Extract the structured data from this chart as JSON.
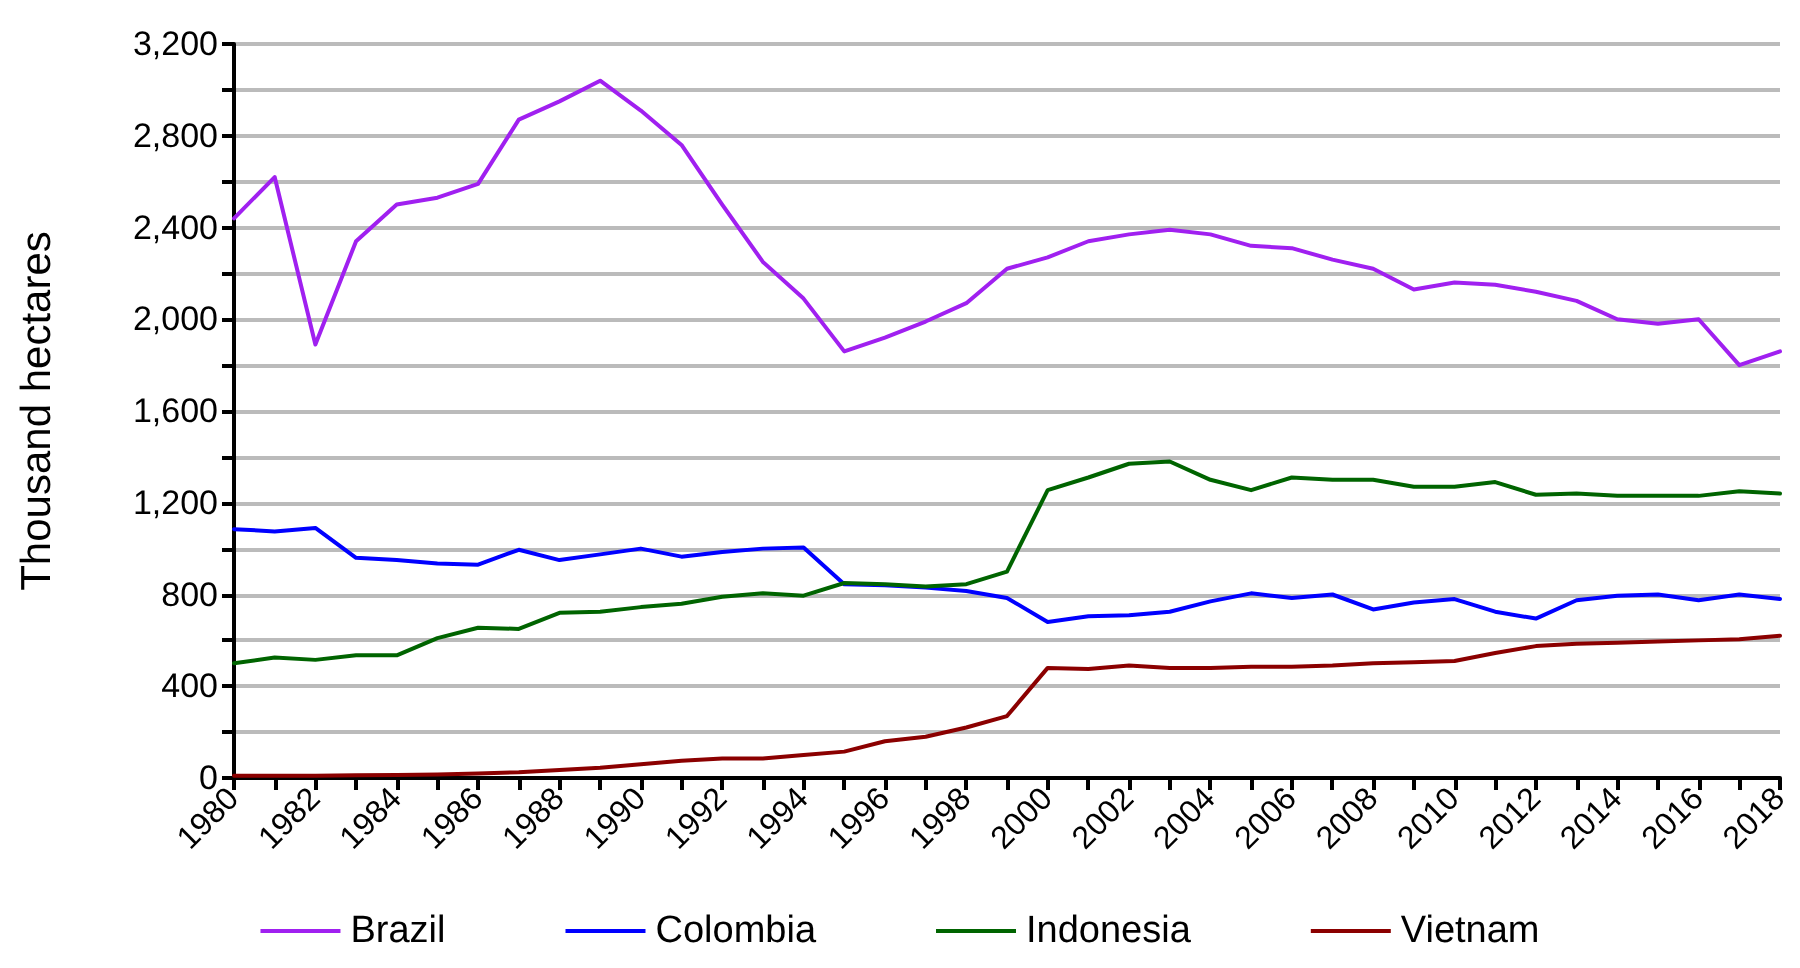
{
  "chart_data": {
    "type": "line",
    "ylabel": "Thousand hectares",
    "x": [
      1980,
      1981,
      1982,
      1983,
      1984,
      1985,
      1986,
      1987,
      1988,
      1989,
      1990,
      1991,
      1992,
      1993,
      1994,
      1995,
      1996,
      1997,
      1998,
      1999,
      2000,
      2001,
      2002,
      2003,
      2004,
      2005,
      2006,
      2007,
      2008,
      2009,
      2010,
      2011,
      2012,
      2013,
      2014,
      2015,
      2016,
      2017,
      2018
    ],
    "series": [
      {
        "name": "Brazil",
        "color": "#a020f0",
        "values": [
          2440,
          2620,
          1890,
          2340,
          2500,
          2530,
          2590,
          2870,
          2950,
          3040,
          2910,
          2760,
          2500,
          2250,
          2090,
          1860,
          1920,
          1990,
          2070,
          2220,
          2270,
          2340,
          2370,
          2390,
          2370,
          2320,
          2310,
          2260,
          2220,
          2130,
          2160,
          2150,
          2120,
          2080,
          2000,
          1980,
          2000,
          1800,
          1860
        ]
      },
      {
        "name": "Colombia",
        "color": "#0000ff",
        "values": [
          1085,
          1075,
          1090,
          960,
          950,
          935,
          930,
          995,
          950,
          975,
          1000,
          965,
          985,
          1000,
          1005,
          845,
          840,
          830,
          815,
          785,
          680,
          705,
          710,
          725,
          770,
          805,
          785,
          800,
          735,
          765,
          780,
          725,
          695,
          775,
          795,
          800,
          775,
          800,
          780
        ]
      },
      {
        "name": "Indonesia",
        "color": "#006400",
        "values": [
          500,
          525,
          515,
          535,
          535,
          610,
          655,
          650,
          720,
          725,
          745,
          760,
          790,
          805,
          795,
          850,
          845,
          835,
          845,
          900,
          1255,
          1310,
          1370,
          1380,
          1300,
          1255,
          1310,
          1300,
          1300,
          1270,
          1270,
          1290,
          1235,
          1240,
          1230,
          1230,
          1230,
          1250,
          1240
        ]
      },
      {
        "name": "Vietnam",
        "color": "#8b0000",
        "values": [
          10,
          10,
          10,
          12,
          13,
          15,
          20,
          25,
          35,
          45,
          60,
          75,
          85,
          85,
          100,
          115,
          160,
          180,
          220,
          270,
          480,
          475,
          490,
          480,
          480,
          485,
          485,
          490,
          500,
          505,
          510,
          545,
          575,
          585,
          590,
          595,
          600,
          605,
          620
        ]
      }
    ],
    "xlim": [
      1980,
      2018
    ],
    "xticks": [
      1980,
      {
        "value": 1981,
        "label": null
      },
      1982,
      {
        "value": 1983,
        "label": null
      },
      1984,
      {
        "value": 1985,
        "label": null
      },
      1986,
      {
        "value": 1987,
        "label": null
      },
      1988,
      {
        "value": 1989,
        "label": null
      },
      1990,
      {
        "value": 1991,
        "label": null
      },
      1992,
      {
        "value": 1993,
        "label": null
      },
      1994,
      {
        "value": 1995,
        "label": null
      },
      1996,
      {
        "value": 1997,
        "label": null
      },
      1998,
      {
        "value": 1999,
        "label": null
      },
      2000,
      {
        "value": 2001,
        "label": null
      },
      2002,
      {
        "value": 2003,
        "label": null
      },
      2004,
      {
        "value": 2005,
        "label": null
      },
      2006,
      {
        "value": 2007,
        "label": null
      },
      2008,
      {
        "value": 2009,
        "label": null
      },
      2010,
      {
        "value": 2011,
        "label": null
      },
      2012,
      {
        "value": 2013,
        "label": null
      },
      2014,
      {
        "value": 2015,
        "label": null
      },
      2016,
      {
        "value": 2017,
        "label": null
      },
      2018
    ],
    "ylim": [
      0,
      3200
    ],
    "yticks": [
      {
        "value": 0,
        "label": "0"
      },
      {
        "value": 200,
        "label": null
      },
      {
        "value": 400,
        "label": "400"
      },
      {
        "value": 600,
        "label": null
      },
      {
        "value": 800,
        "label": "800"
      },
      {
        "value": 1000,
        "label": null
      },
      {
        "value": 1200,
        "label": "1,200"
      },
      {
        "value": 1400,
        "label": null
      },
      {
        "value": 1600,
        "label": "1,600"
      },
      {
        "value": 1800,
        "label": null
      },
      {
        "value": 2000,
        "label": "2,000"
      },
      {
        "value": 2200,
        "label": null
      },
      {
        "value": 2400,
        "label": "2,400"
      },
      {
        "value": 2600,
        "label": null
      },
      {
        "value": 2800,
        "label": "2,800"
      },
      {
        "value": 3000,
        "label": null
      },
      {
        "value": 3200,
        "label": "3,200"
      }
    ],
    "grid": "y",
    "legend": "bottom",
    "marker": "none",
    "line_style": "solid"
  }
}
